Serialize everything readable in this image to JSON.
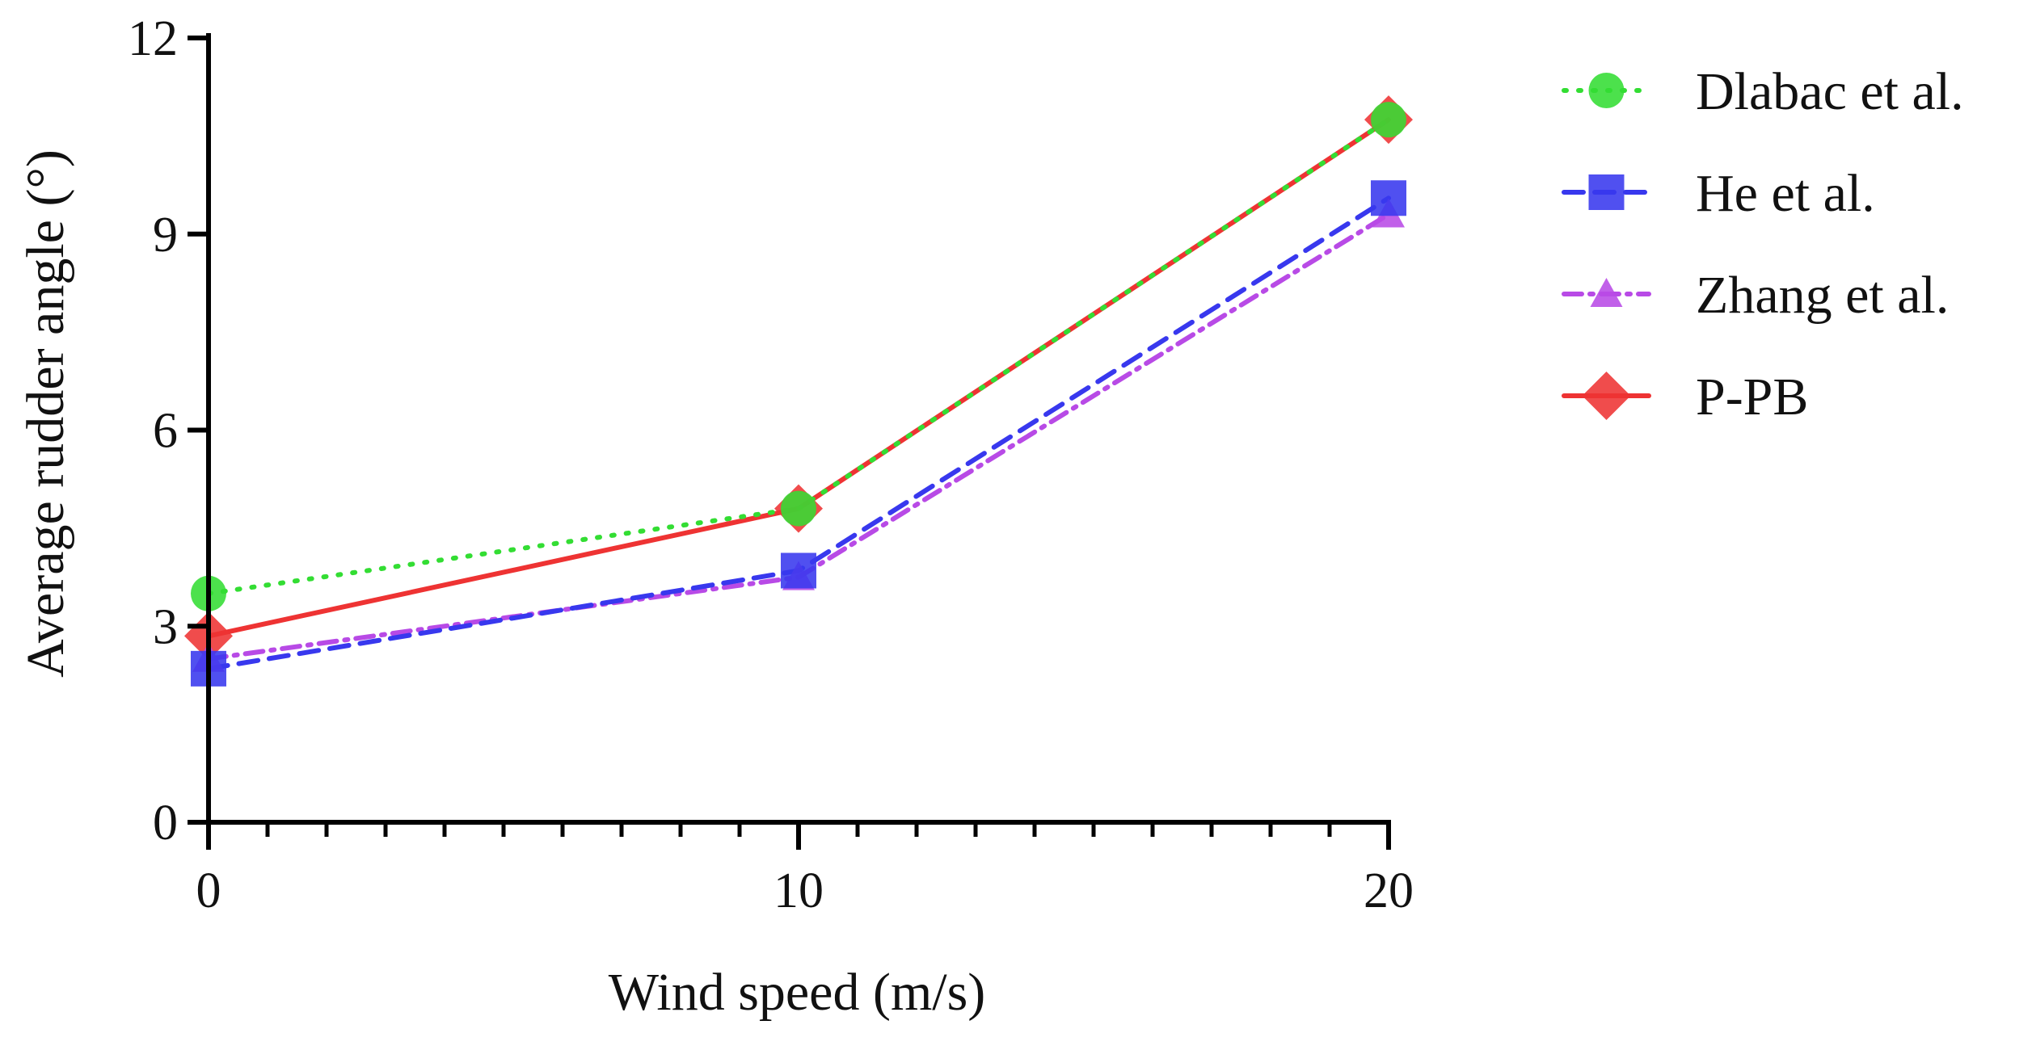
{
  "chart_data": {
    "type": "line",
    "title": "",
    "xlabel": "Wind speed (m/s)",
    "ylabel": "Average rudder angle (°)",
    "xlim": [
      0,
      20
    ],
    "ylim": [
      0,
      12
    ],
    "x_ticks": [
      0,
      10,
      20
    ],
    "x_tick_labels": [
      "0",
      "10",
      "20"
    ],
    "y_ticks": [
      0,
      3,
      6,
      9,
      12
    ],
    "y_tick_labels": [
      "0",
      "3",
      "6",
      "9",
      "12"
    ],
    "grid": false,
    "legend_position": "right",
    "x": [
      0,
      10,
      20
    ],
    "series": [
      {
        "name": "Dlabac et al.",
        "values": [
          3.5,
          4.8,
          10.75
        ],
        "color": "#33dd33",
        "marker": "circle",
        "line": "dotted"
      },
      {
        "name": "He et al.",
        "values": [
          2.35,
          3.85,
          9.55
        ],
        "color": "#3838ee",
        "marker": "square",
        "line": "dashed"
      },
      {
        "name": "Zhang et al.",
        "values": [
          2.5,
          3.75,
          9.3
        ],
        "color": "#b84ae6",
        "marker": "triangle",
        "line": "dashdot"
      },
      {
        "name": "P-PB",
        "values": [
          2.85,
          4.8,
          10.75
        ],
        "color": "#ee3333",
        "marker": "diamond",
        "line": "solid"
      }
    ]
  }
}
